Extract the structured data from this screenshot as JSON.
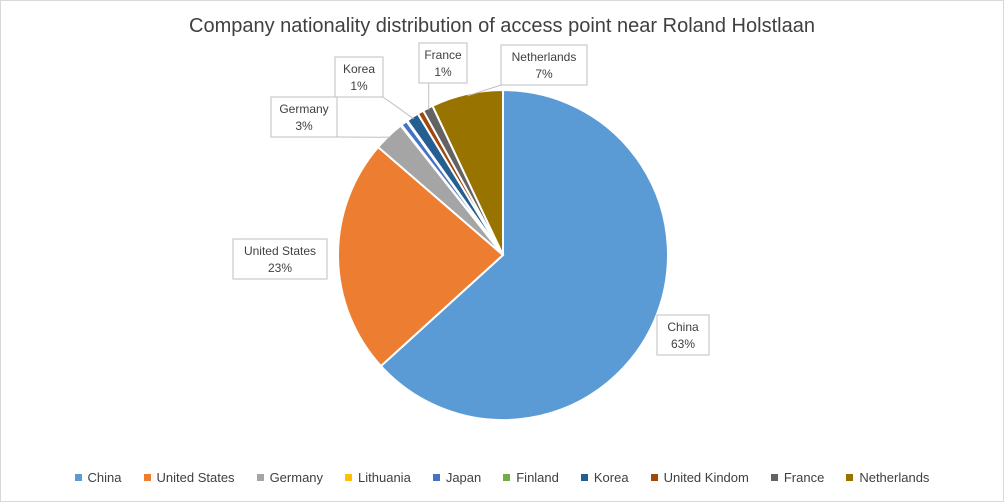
{
  "chart_data": {
    "type": "pie",
    "title": "Company nationality distribution of access point near Roland Holstlaan",
    "slices": [
      {
        "name": "China",
        "value": 63,
        "color": "#5B9BD5"
      },
      {
        "name": "United States",
        "value": 23,
        "color": "#ED7D31"
      },
      {
        "name": "Germany",
        "value": 3,
        "color": "#A5A5A5"
      },
      {
        "name": "Lithuania",
        "value": 0.1,
        "color": "#FFC000"
      },
      {
        "name": "Japan",
        "value": 0.6,
        "color": "#4472C4"
      },
      {
        "name": "Finland",
        "value": 0.1,
        "color": "#70AD47"
      },
      {
        "name": "Korea",
        "value": 1.2,
        "color": "#255E91"
      },
      {
        "name": "United Kindom",
        "value": 0.6,
        "color": "#9E480E"
      },
      {
        "name": "France",
        "value": 1.0,
        "color": "#636363"
      },
      {
        "name": "Netherlands",
        "value": 7,
        "color": "#997300"
      }
    ],
    "data_labels": [
      {
        "slice": "China",
        "name": "China",
        "pct": "63%"
      },
      {
        "slice": "United States",
        "name": "United States",
        "pct": "23%"
      },
      {
        "slice": "Germany",
        "name": "Germany",
        "pct": "3%"
      },
      {
        "slice": "Korea",
        "name": "Korea",
        "pct": "1%"
      },
      {
        "slice": "France",
        "name": "France",
        "pct": "1%"
      },
      {
        "slice": "Netherlands",
        "name": "Netherlands",
        "pct": "7%"
      }
    ],
    "legend_position": "bottom"
  }
}
